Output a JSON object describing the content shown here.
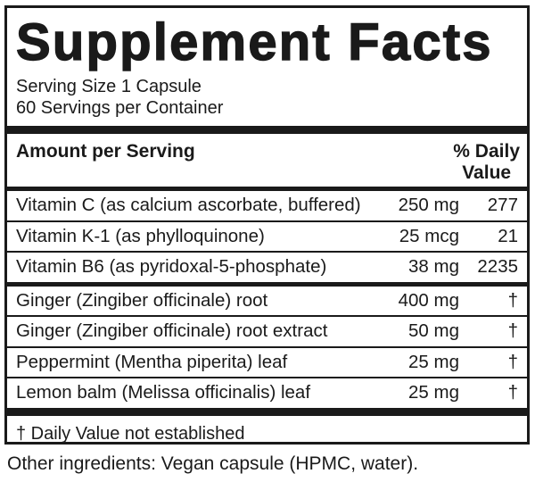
{
  "panel": {
    "title": "Supplement Facts",
    "serving_size": "Serving Size 1 Capsule",
    "servings_per_container": "60 Servings per Container",
    "amount_header": "Amount per Serving",
    "dv_header_line1": "% Daily",
    "dv_header_line2": "Value",
    "rows": [
      {
        "name": "Vitamin C (as calcium ascorbate, buffered)",
        "amount": "250 mg",
        "dv": "277"
      },
      {
        "name": "Vitamin K-1 (as phylloquinone)",
        "amount": "25 mcg",
        "dv": "21"
      },
      {
        "name": "Vitamin B6 (as pyridoxal-5-phosphate)",
        "amount": "38 mg",
        "dv": "2235"
      },
      {
        "name": "Ginger (Zingiber officinale) root",
        "amount": "400 mg",
        "dv": "†"
      },
      {
        "name": "Ginger (Zingiber officinale) root extract",
        "amount": "50 mg",
        "dv": "†"
      },
      {
        "name": "Peppermint (Mentha piperita) leaf",
        "amount": "25 mg",
        "dv": "†"
      },
      {
        "name": "Lemon balm (Melissa officinalis) leaf",
        "amount": "25 mg",
        "dv": "†"
      }
    ],
    "footnote": "† Daily Value not established"
  },
  "other_ingredients": "Other ingredients: Vegan capsule (HPMC, water)."
}
